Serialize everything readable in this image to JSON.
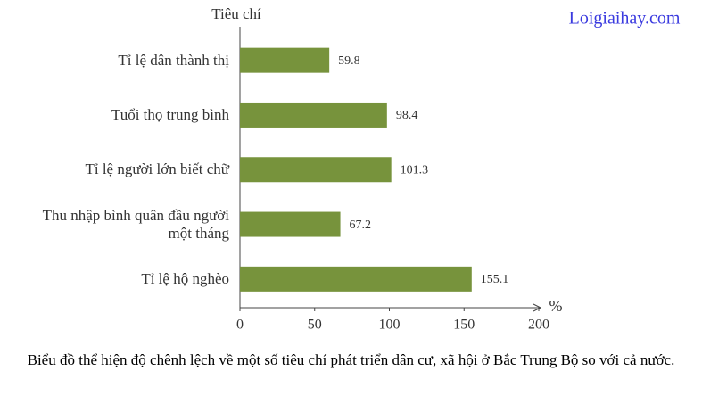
{
  "chart_data": {
    "type": "bar",
    "orientation": "horizontal",
    "watermark": "Loigiaihay.com",
    "y_axis_title": "Tiêu chí",
    "x_axis_unit": "%",
    "caption": "Biểu đồ thể hiện độ chênh lệch về một số tiêu chí phát triển dân cư, xã hội ở Bắc Trung Bộ so với cả nước.",
    "categories": [
      "Tỉ lệ dân thành thị",
      "Tuổi thọ trung bình",
      "Tỉ lệ người lớn biết chữ",
      "Thu nhập bình quân đầu người\nmột tháng",
      "Tỉ lệ hộ nghèo"
    ],
    "values": [
      59.8,
      98.4,
      101.3,
      67.2,
      155.1
    ],
    "color": "#77933c",
    "xlim": [
      0,
      200
    ],
    "xticks": [
      0,
      50,
      100,
      150,
      200
    ]
  }
}
